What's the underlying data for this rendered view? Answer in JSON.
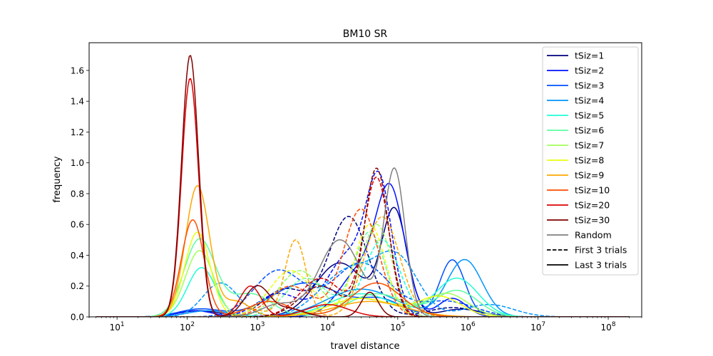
{
  "chart_data": {
    "type": "line",
    "title": "BM10 SR",
    "xlabel": "travel distance",
    "ylabel": "frequency",
    "xscale": "log",
    "xlim": [
      4,
      300000000
    ],
    "ylim": [
      0,
      1.78
    ],
    "x_ticks": [
      {
        "value": 10,
        "base": "10",
        "exp": "1"
      },
      {
        "value": 100,
        "base": "10",
        "exp": "2"
      },
      {
        "value": 1000,
        "base": "10",
        "exp": "3"
      },
      {
        "value": 10000,
        "base": "10",
        "exp": "4"
      },
      {
        "value": 100000,
        "base": "10",
        "exp": "5"
      },
      {
        "value": 1000000,
        "base": "10",
        "exp": "6"
      },
      {
        "value": 10000000,
        "base": "10",
        "exp": "7"
      },
      {
        "value": 100000000,
        "base": "10",
        "exp": "8"
      }
    ],
    "y_ticks": [
      "0.0",
      "0.2",
      "0.4",
      "0.6",
      "0.8",
      "1.0",
      "1.2",
      "1.4",
      "1.6"
    ],
    "grid": false,
    "legend_position": "top-right",
    "legend": [
      {
        "label": "tSiz=1",
        "color": "#00007f",
        "style": "solid"
      },
      {
        "label": "tSiz=2",
        "color": "#0010ff",
        "style": "solid"
      },
      {
        "label": "tSiz=3",
        "color": "#0050ff",
        "style": "solid"
      },
      {
        "label": "tSiz=4",
        "color": "#0094ff",
        "style": "solid"
      },
      {
        "label": "tSiz=5",
        "color": "#20ffd7",
        "style": "solid"
      },
      {
        "label": "tSiz=6",
        "color": "#5dffa0",
        "style": "solid"
      },
      {
        "label": "tSiz=7",
        "color": "#a3ff5a",
        "style": "solid"
      },
      {
        "label": "tSiz=8",
        "color": "#eaff0d",
        "style": "solid"
      },
      {
        "label": "tSiz=9",
        "color": "#ffa700",
        "style": "solid"
      },
      {
        "label": "tSiz=10",
        "color": "#ff4e00",
        "style": "solid"
      },
      {
        "label": "tSiz=20",
        "color": "#dd0000",
        "style": "solid"
      },
      {
        "label": "tSiz=30",
        "color": "#7f0000",
        "style": "solid"
      },
      {
        "label": "Random",
        "color": "#808080",
        "style": "solid"
      },
      {
        "label": "First 3 trials",
        "color": "#000000",
        "style": "dashed"
      },
      {
        "label": "Last 3 trials",
        "color": "#000000",
        "style": "solid"
      }
    ],
    "series": [
      {
        "color": "#00007f",
        "dashed": true,
        "peaks": [
          [
            20000,
            0.65,
            0.28
          ],
          [
            2500,
            0.18,
            0.3
          ],
          [
            600000,
            0.06,
            0.35
          ]
        ]
      },
      {
        "color": "#00007f",
        "dashed": false,
        "peaks": [
          [
            90000,
            0.68,
            0.18
          ],
          [
            15000,
            0.35,
            0.35
          ],
          [
            150,
            0.04,
            0.3
          ],
          [
            800000,
            0.05,
            0.3
          ]
        ]
      },
      {
        "color": "#0010ff",
        "dashed": true,
        "peaks": [
          [
            55000,
            0.8,
            0.18
          ],
          [
            20000,
            0.4,
            0.3
          ],
          [
            2000,
            0.15,
            0.3
          ]
        ]
      },
      {
        "color": "#0010ff",
        "dashed": false,
        "peaks": [
          [
            80000,
            0.75,
            0.2
          ],
          [
            30000,
            0.3,
            0.3
          ],
          [
            130,
            0.04,
            0.25
          ],
          [
            600000,
            0.12,
            0.2
          ]
        ]
      },
      {
        "color": "#0050ff",
        "dashed": true,
        "peaks": [
          [
            2000,
            0.3,
            0.35
          ],
          [
            30000,
            0.35,
            0.4
          ],
          [
            500000,
            0.1,
            0.4
          ]
        ]
      },
      {
        "color": "#0050ff",
        "dashed": false,
        "peaks": [
          [
            600000,
            0.37,
            0.18
          ],
          [
            5000,
            0.22,
            0.5
          ],
          [
            150,
            0.05,
            0.3
          ],
          [
            60000,
            0.1,
            0.3
          ]
        ]
      },
      {
        "color": "#0094ff",
        "dashed": true,
        "peaks": [
          [
            300,
            0.22,
            0.25
          ],
          [
            20000,
            0.3,
            0.4
          ],
          [
            100000,
            0.35,
            0.3
          ],
          [
            2000000,
            0.08,
            0.35
          ]
        ]
      },
      {
        "color": "#0094ff",
        "dashed": false,
        "peaks": [
          [
            900000,
            0.37,
            0.25
          ],
          [
            30000,
            0.18,
            0.5
          ],
          [
            200,
            0.04,
            0.3
          ]
        ]
      },
      {
        "color": "#20ffd7",
        "dashed": true,
        "peaks": [
          [
            4000,
            0.3,
            0.3
          ],
          [
            60000,
            0.5,
            0.25
          ]
        ]
      },
      {
        "color": "#20ffd7",
        "dashed": false,
        "peaks": [
          [
            160,
            0.32,
            0.2
          ],
          [
            700000,
            0.25,
            0.3
          ],
          [
            30000,
            0.15,
            0.45
          ]
        ]
      },
      {
        "color": "#5dffa0",
        "dashed": true,
        "peaks": [
          [
            5000,
            0.25,
            0.3
          ],
          [
            40000,
            0.55,
            0.22
          ]
        ]
      },
      {
        "color": "#5dffa0",
        "dashed": false,
        "peaks": [
          [
            150,
            0.5,
            0.22
          ],
          [
            800,
            0.15,
            0.3
          ],
          [
            50000,
            0.15,
            0.4
          ],
          [
            700000,
            0.17,
            0.3
          ]
        ]
      },
      {
        "color": "#a3ff5a",
        "dashed": true,
        "peaks": [
          [
            4000,
            0.3,
            0.3
          ],
          [
            50000,
            0.6,
            0.22
          ]
        ]
      },
      {
        "color": "#a3ff5a",
        "dashed": false,
        "peaks": [
          [
            150,
            0.43,
            0.2
          ],
          [
            30000,
            0.12,
            0.45
          ],
          [
            500000,
            0.15,
            0.3
          ]
        ]
      },
      {
        "color": "#eaff0d",
        "dashed": true,
        "peaks": [
          [
            3000,
            0.3,
            0.3
          ],
          [
            40000,
            0.6,
            0.22
          ]
        ]
      },
      {
        "color": "#eaff0d",
        "dashed": false,
        "peaks": [
          [
            140,
            0.55,
            0.18
          ],
          [
            30000,
            0.12,
            0.45
          ],
          [
            400000,
            0.13,
            0.3
          ]
        ]
      },
      {
        "color": "#ffa700",
        "dashed": true,
        "peaks": [
          [
            3500,
            0.5,
            0.15
          ],
          [
            60000,
            0.65,
            0.25
          ],
          [
            800,
            0.05,
            0.2
          ]
        ]
      },
      {
        "color": "#ffa700",
        "dashed": false,
        "peaks": [
          [
            140,
            0.85,
            0.17
          ],
          [
            500,
            0.1,
            0.2
          ],
          [
            40000,
            0.1,
            0.5
          ]
        ]
      },
      {
        "color": "#ff4e00",
        "dashed": true,
        "peaks": [
          [
            30000,
            0.7,
            0.25
          ],
          [
            3000,
            0.2,
            0.3
          ]
        ]
      },
      {
        "color": "#ff4e00",
        "dashed": false,
        "peaks": [
          [
            120,
            0.63,
            0.16
          ],
          [
            50000,
            0.22,
            0.35
          ],
          [
            1500,
            0.1,
            0.3
          ]
        ]
      },
      {
        "color": "#dd0000",
        "dashed": true,
        "peaks": [
          [
            50000,
            0.9,
            0.18
          ],
          [
            8000,
            0.25,
            0.3
          ]
        ]
      },
      {
        "color": "#dd0000",
        "dashed": false,
        "peaks": [
          [
            110,
            1.55,
            0.12
          ],
          [
            800,
            0.2,
            0.15
          ],
          [
            10000,
            0.08,
            0.3
          ]
        ]
      },
      {
        "color": "#7f0000",
        "dashed": true,
        "peaks": [
          [
            50000,
            0.96,
            0.17
          ],
          [
            8000,
            0.2,
            0.3
          ]
        ]
      },
      {
        "color": "#7f0000",
        "dashed": false,
        "peaks": [
          [
            110,
            1.7,
            0.12
          ],
          [
            1000,
            0.2,
            0.18
          ],
          [
            40000,
            0.16,
            0.12
          ],
          [
            3000,
            0.05,
            0.2
          ]
        ]
      },
      {
        "color": "#808080",
        "dashed": false,
        "peaks": [
          [
            90000,
            0.95,
            0.15
          ],
          [
            15000,
            0.5,
            0.3
          ],
          [
            2000,
            0.08,
            0.25
          ]
        ]
      }
    ]
  }
}
